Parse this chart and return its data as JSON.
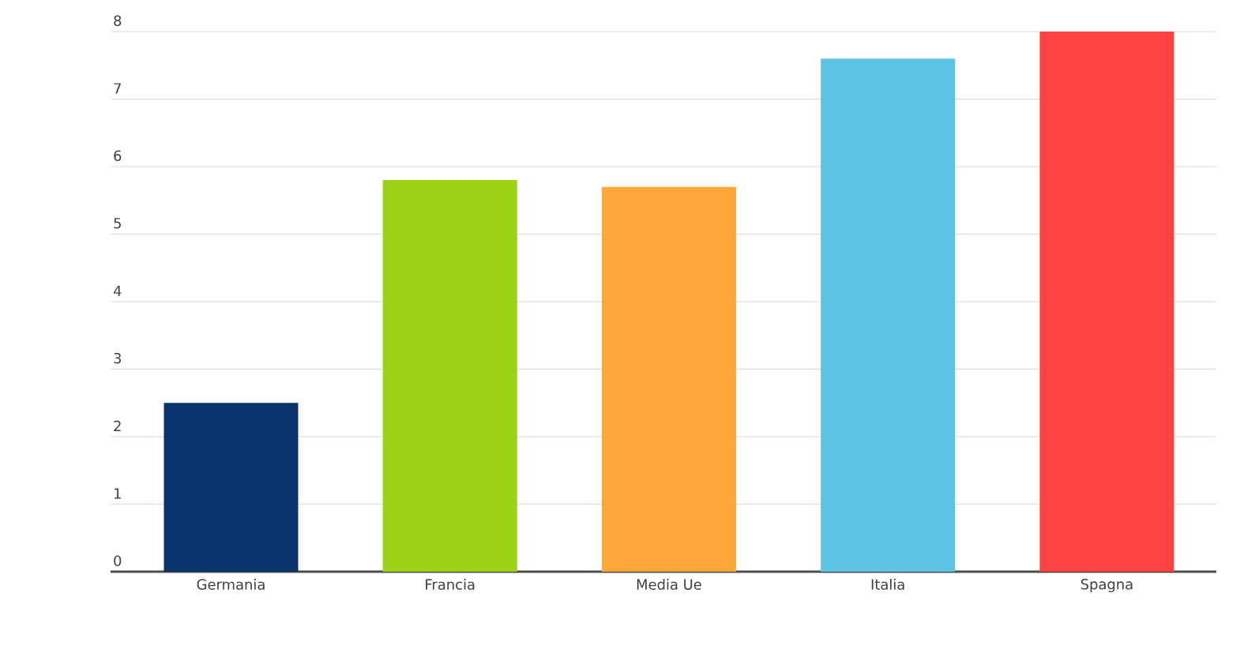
{
  "chart_data": {
    "type": "bar",
    "categories": [
      "Germania",
      "Francia",
      "Media Ue",
      "Italia",
      "Spagna"
    ],
    "values": [
      2.5,
      5.8,
      5.7,
      7.6,
      8
    ],
    "colors": [
      "#08336b",
      "#9bd314",
      "#fea83a",
      "#5bc4e5",
      "#fe4242"
    ],
    "ylim": [
      0,
      8
    ],
    "yticks": [
      0,
      1,
      2,
      3,
      4,
      5,
      6,
      7,
      8
    ],
    "grid": "y"
  }
}
